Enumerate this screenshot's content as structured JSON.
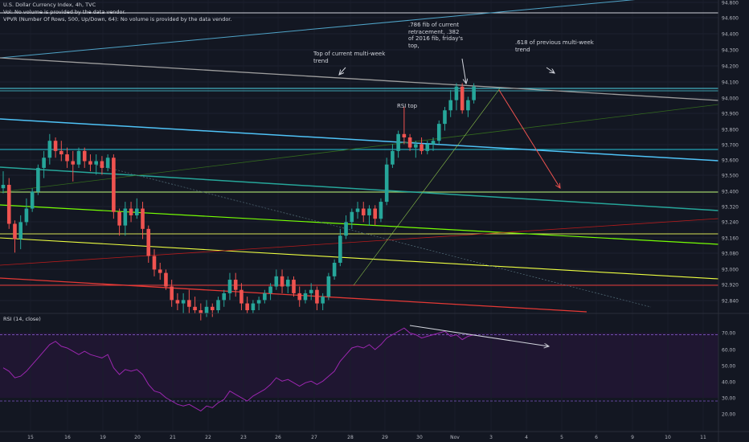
{
  "header": {
    "symbol_line": "U.S. Dollar Currency Index, 4h, TVC",
    "vol_line": "Vol: No volume is provided by the data vendor.",
    "vpvr_line": "VPVR (Number Of Rows, 500, Up/Down, 64): No volume is provided by the data vendor."
  },
  "annotations": {
    "fib786": ".786 fib of current\nretracement, .382\nof 2016 fib, friday's\ntop,",
    "fib618": ".618 of previous multi-week\ntrend",
    "top_trend": "Top of current multi-week\ntrend",
    "rsi_top": "RSI top"
  },
  "rsi_label": "RSI (14, close)",
  "colors": {
    "background": "#131722",
    "up": "#26a69a",
    "down": "#ef5350",
    "rsi_line": "#9c27b0",
    "rsi_band": "#7e57c2"
  },
  "chart_data": [
    {
      "type": "candlestick",
      "title": "U.S. Dollar Currency Index, 4h, TVC",
      "price_axis_ticks": [
        "94.800",
        "94.600",
        "94.400",
        "94.300",
        "94.200",
        "94.100",
        "94.000",
        "93.900",
        "93.800",
        "93.700",
        "93.600",
        "93.500",
        "93.400",
        "93.320",
        "93.240",
        "93.160",
        "93.080",
        "93.000",
        "92.920",
        "92.840"
      ],
      "x_tick_labels": [
        "15",
        "16",
        "19",
        "20",
        "21",
        "22",
        "23",
        "26",
        "27",
        "28",
        "29",
        "30",
        "Nov",
        "3",
        "4",
        "5",
        "6",
        "9",
        "10",
        "11"
      ],
      "ohlc": [
        [
          93.58,
          93.68,
          93.55,
          93.6
        ],
        [
          93.6,
          93.64,
          93.34,
          93.37
        ],
        [
          93.37,
          93.39,
          93.2,
          93.28
        ],
        [
          93.28,
          93.42,
          93.22,
          93.38
        ],
        [
          93.38,
          93.52,
          93.36,
          93.46
        ],
        [
          93.46,
          93.58,
          93.44,
          93.56
        ],
        [
          93.56,
          93.72,
          93.54,
          93.7
        ],
        [
          93.7,
          93.8,
          93.64,
          93.76
        ],
        [
          93.76,
          93.9,
          93.72,
          93.86
        ],
        [
          93.86,
          93.88,
          93.76,
          93.8
        ],
        [
          93.8,
          93.86,
          93.74,
          93.78
        ],
        [
          93.78,
          93.82,
          93.7,
          93.74
        ],
        [
          93.74,
          93.8,
          93.62,
          93.72
        ],
        [
          93.72,
          93.82,
          93.7,
          93.8
        ],
        [
          93.8,
          93.82,
          93.7,
          93.74
        ],
        [
          93.74,
          93.78,
          93.68,
          93.72
        ],
        [
          93.72,
          93.78,
          93.66,
          93.74
        ],
        [
          93.74,
          93.77,
          93.66,
          93.7
        ],
        [
          93.7,
          93.78,
          93.68,
          93.76
        ],
        [
          93.76,
          93.78,
          93.4,
          93.44
        ],
        [
          93.44,
          93.46,
          93.3,
          93.36
        ],
        [
          93.36,
          93.5,
          93.3,
          93.46
        ],
        [
          93.46,
          93.5,
          93.38,
          93.42
        ],
        [
          93.42,
          93.52,
          93.4,
          93.46
        ],
        [
          93.46,
          93.5,
          93.28,
          93.34
        ],
        [
          93.34,
          93.36,
          93.14,
          93.18
        ],
        [
          93.18,
          93.22,
          93.06,
          93.1
        ],
        [
          93.1,
          93.14,
          93.04,
          93.08
        ],
        [
          93.08,
          93.1,
          92.98,
          93.0
        ],
        [
          93.0,
          93.04,
          92.88,
          92.92
        ],
        [
          92.92,
          92.96,
          92.86,
          92.9
        ],
        [
          92.9,
          92.96,
          92.84,
          92.92
        ],
        [
          92.92,
          92.98,
          92.84,
          92.88
        ],
        [
          92.88,
          92.94,
          92.84,
          92.86
        ],
        [
          92.86,
          92.9,
          92.8,
          92.84
        ],
        [
          92.84,
          92.92,
          92.82,
          92.88
        ],
        [
          92.88,
          92.9,
          92.82,
          92.86
        ],
        [
          92.86,
          92.94,
          92.84,
          92.92
        ],
        [
          92.92,
          92.98,
          92.88,
          92.96
        ],
        [
          92.96,
          93.08,
          92.92,
          93.04
        ],
        [
          93.04,
          93.08,
          92.94,
          92.98
        ],
        [
          92.98,
          93.02,
          92.86,
          92.9
        ],
        [
          92.9,
          92.94,
          92.84,
          92.86
        ],
        [
          92.86,
          92.92,
          92.84,
          92.9
        ],
        [
          92.9,
          92.94,
          92.86,
          92.92
        ],
        [
          92.92,
          92.98,
          92.9,
          92.96
        ],
        [
          92.96,
          93.02,
          92.92,
          93.0
        ],
        [
          93.0,
          93.1,
          92.98,
          93.06
        ],
        [
          93.06,
          93.1,
          92.96,
          93.0
        ],
        [
          93.0,
          93.06,
          92.96,
          93.04
        ],
        [
          93.04,
          93.06,
          92.94,
          92.96
        ],
        [
          92.96,
          93.0,
          92.88,
          92.92
        ],
        [
          92.92,
          92.98,
          92.9,
          92.96
        ],
        [
          92.96,
          93.02,
          92.92,
          92.98
        ],
        [
          92.98,
          93.0,
          92.86,
          92.9
        ],
        [
          92.9,
          92.96,
          92.86,
          92.94
        ],
        [
          92.94,
          93.08,
          92.92,
          93.06
        ],
        [
          93.06,
          93.16,
          93.04,
          93.14
        ],
        [
          93.14,
          93.34,
          93.12,
          93.3
        ],
        [
          93.3,
          93.42,
          93.28,
          93.38
        ],
        [
          93.38,
          93.46,
          93.34,
          93.44
        ],
        [
          93.44,
          93.5,
          93.4,
          93.46
        ],
        [
          93.46,
          93.5,
          93.38,
          93.42
        ],
        [
          93.42,
          93.48,
          93.36,
          93.46
        ],
        [
          93.46,
          93.48,
          93.36,
          93.4
        ],
        [
          93.4,
          93.52,
          93.38,
          93.5
        ],
        [
          93.5,
          93.76,
          93.48,
          93.72
        ],
        [
          93.72,
          93.84,
          93.7,
          93.8
        ],
        [
          93.8,
          93.92,
          93.76,
          93.9
        ],
        [
          93.9,
          94.06,
          93.84,
          93.88
        ],
        [
          93.88,
          93.9,
          93.8,
          93.82
        ],
        [
          93.82,
          93.86,
          93.76,
          93.84
        ],
        [
          93.84,
          93.88,
          93.78,
          93.8
        ],
        [
          93.8,
          93.86,
          93.78,
          93.84
        ],
        [
          93.84,
          93.88,
          93.8,
          93.86
        ],
        [
          93.86,
          93.98,
          93.84,
          93.96
        ],
        [
          93.96,
          94.06,
          93.92,
          94.04
        ],
        [
          94.04,
          94.16,
          94.0,
          94.1
        ],
        [
          94.1,
          94.2,
          94.04,
          94.18
        ],
        [
          94.18,
          94.2,
          94.02,
          94.04
        ],
        [
          94.04,
          94.12,
          94.0,
          94.1
        ],
        [
          94.1,
          94.2,
          94.08,
          94.18
        ]
      ]
    },
    {
      "type": "line",
      "title": "RSI (14, close)",
      "y_ticks": [
        70.0,
        60.0,
        50.0,
        40.0,
        30.0,
        20.0
      ],
      "ylim": [
        15,
        77
      ],
      "bands": [
        30,
        70
      ],
      "values": [
        50,
        48,
        44,
        45,
        48,
        52,
        56,
        60,
        64,
        66,
        63,
        62,
        60,
        58,
        60,
        58,
        57,
        56,
        58,
        50,
        46,
        49,
        48,
        49,
        46,
        40,
        36,
        35,
        32,
        30,
        28,
        27,
        28,
        26,
        24,
        27,
        26,
        29,
        31,
        36,
        34,
        32,
        30,
        33,
        35,
        37,
        40,
        44,
        42,
        43,
        41,
        39,
        41,
        42,
        40,
        42,
        45,
        48,
        54,
        58,
        62,
        63,
        62,
        64,
        61,
        64,
        68,
        70,
        72,
        74,
        71,
        70,
        68,
        69,
        70,
        71,
        72,
        69,
        70,
        67,
        69,
        70
      ]
    }
  ]
}
